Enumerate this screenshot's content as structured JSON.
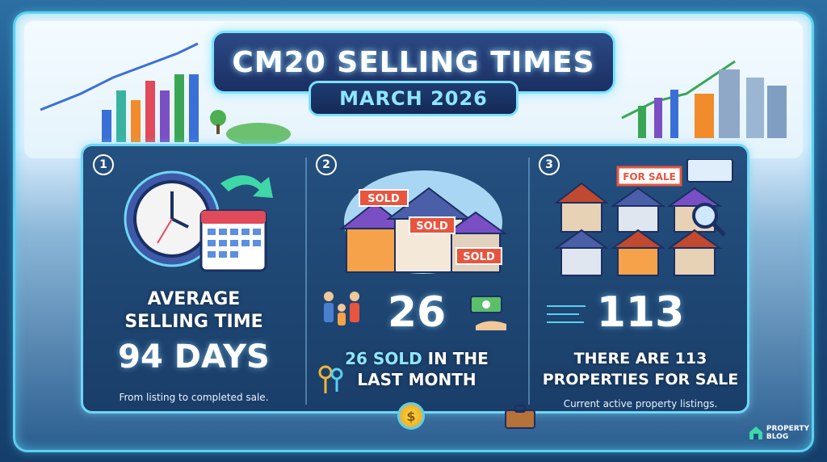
{
  "header": {
    "title": "CM20 SELLING TIMES",
    "subtitle": "MARCH 2026"
  },
  "cards": [
    {
      "number": "1",
      "heading_line1": "AVERAGE",
      "heading_line2": "SELLING TIME",
      "stat": "94 DAYS",
      "description": "From listing to completed sale."
    },
    {
      "number": "2",
      "stat": "26",
      "line1_highlight": "26 SOLD",
      "line1_rest": " IN THE",
      "line2": "LAST MONTH",
      "signs": [
        "SOLD",
        "SOLD",
        "SOLD"
      ]
    },
    {
      "number": "3",
      "stat": "113",
      "line1": "THERE ARE 113",
      "line2": "PROPERTIES FOR SALE",
      "description": "Current active property listings.",
      "sign": "FOR SALE"
    }
  ],
  "coin_symbol": "$",
  "logo": {
    "line1": "PROPERTY",
    "line2": "BLOG"
  },
  "colors": {
    "accent": "#5ad0f0",
    "highlight": "#8fe6ff",
    "panel": "#1a3e69",
    "sold_sign": "#e8553f"
  }
}
